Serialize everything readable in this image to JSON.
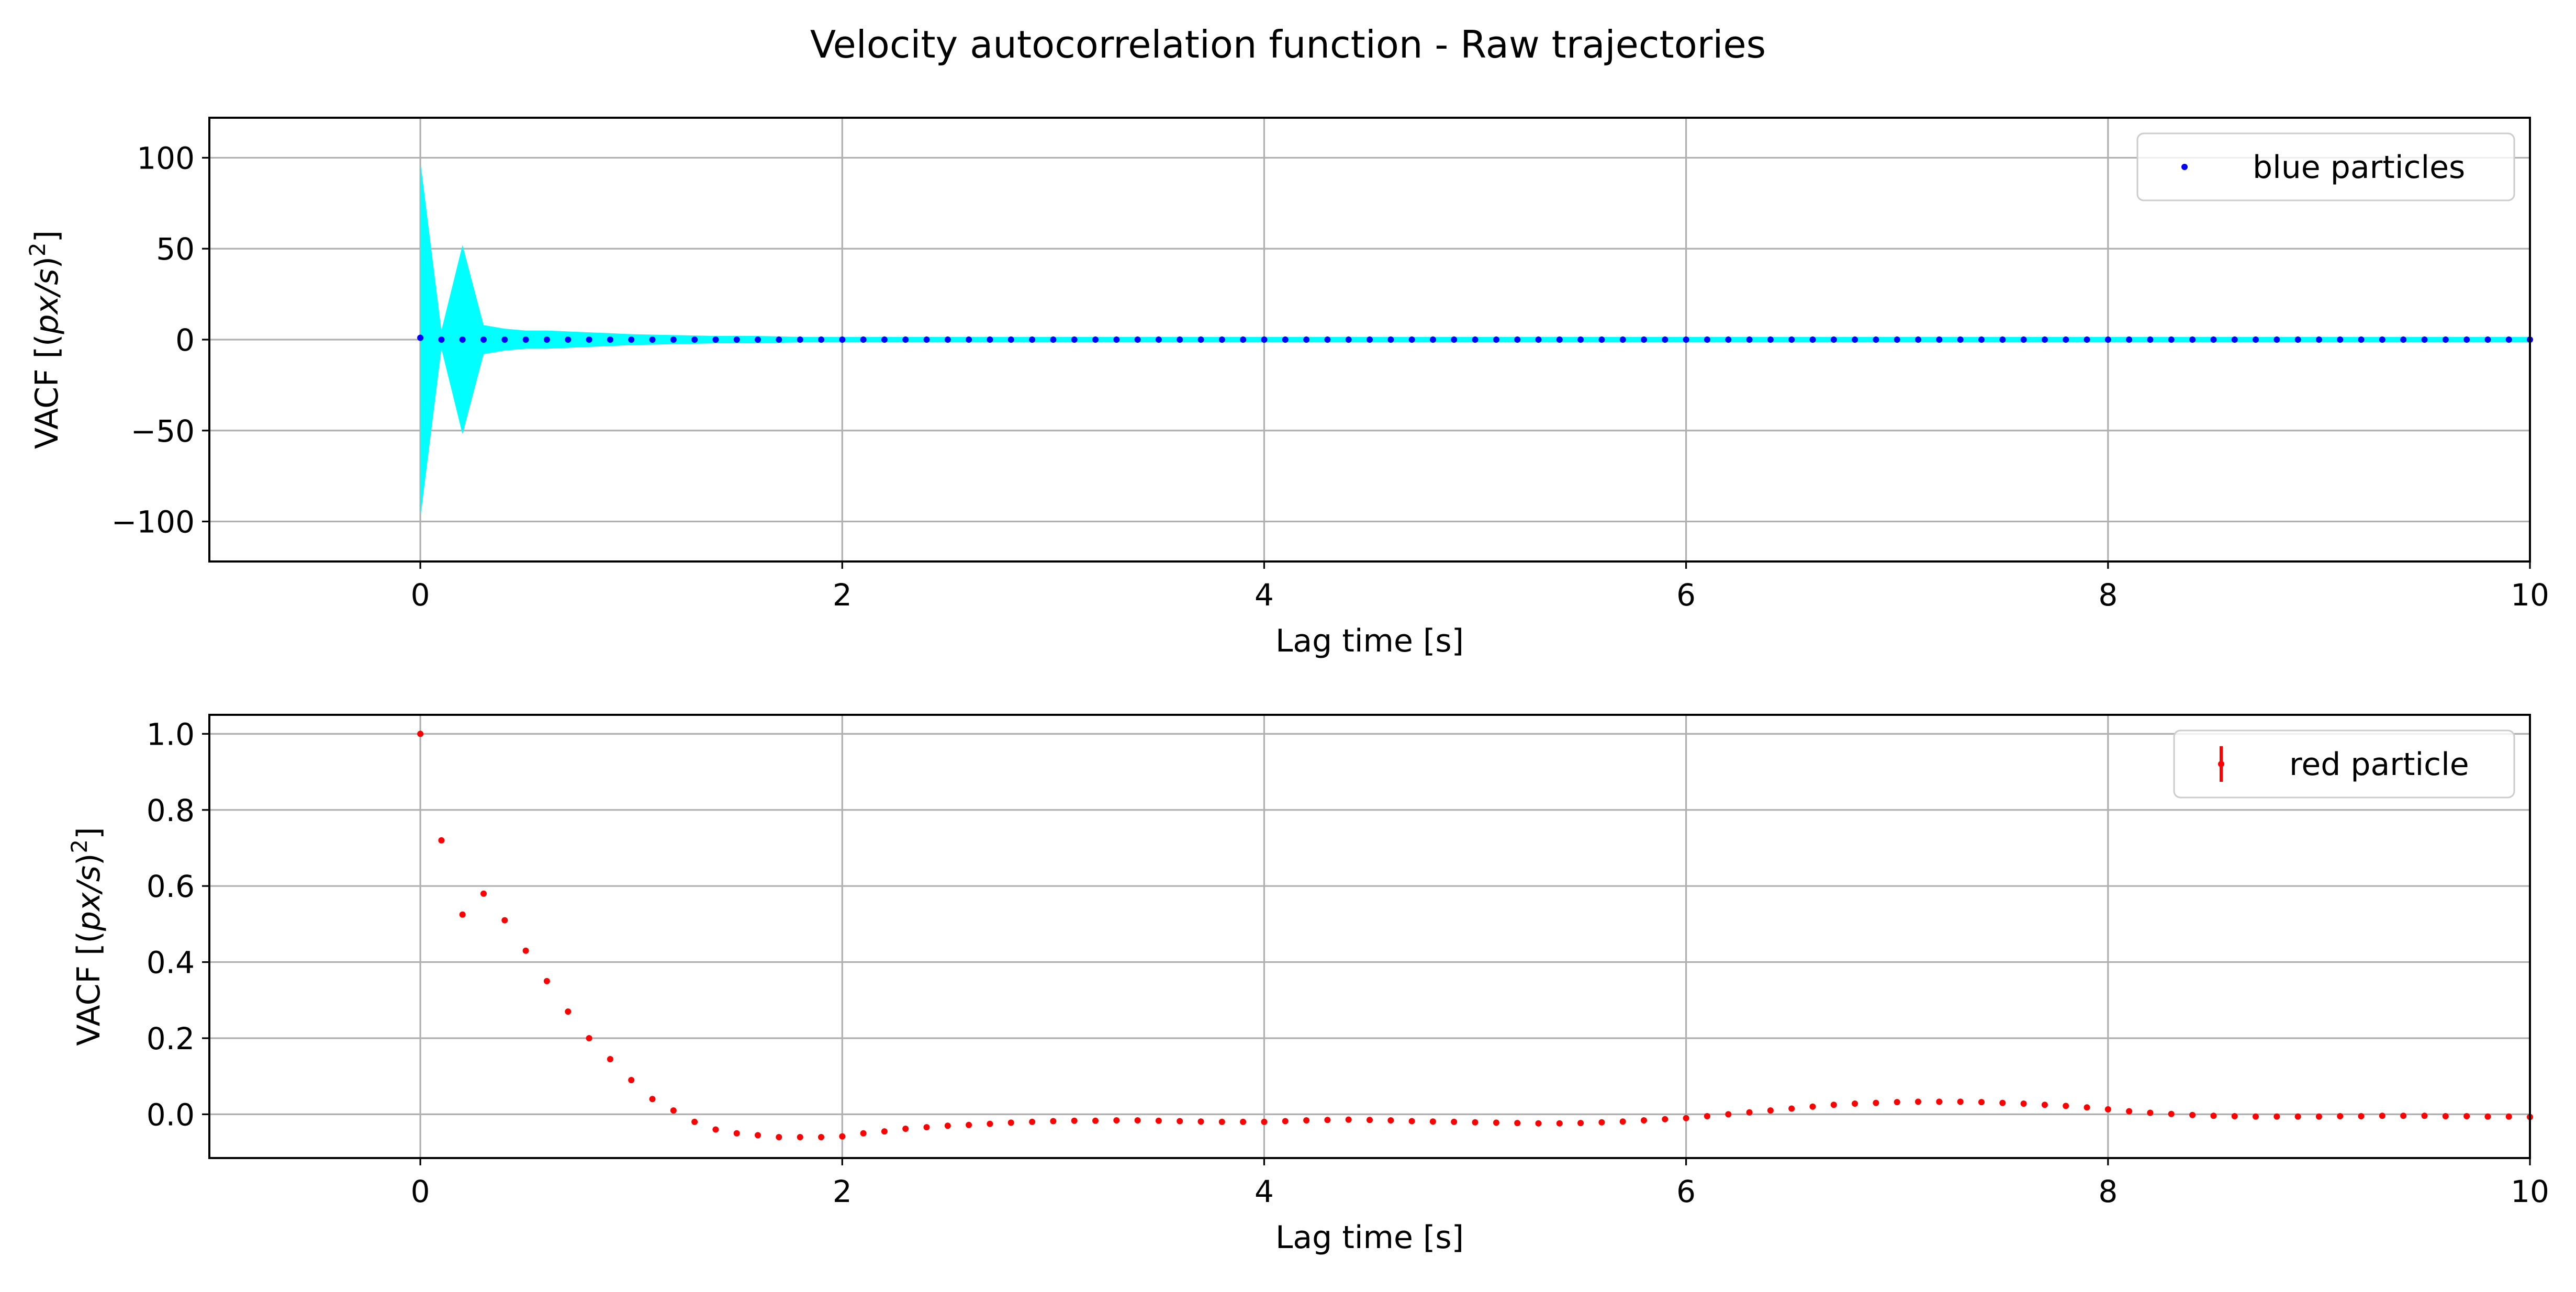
{
  "chart_data": {
    "title": "Velocity autocorrelation function - Raw trajectories",
    "subplots": [
      {
        "type": "scatter",
        "xlabel": "Lag time [s]",
        "ylabel": "VACF [(px/s)²]",
        "ylabel_main": "VACF [(",
        "ylabel_italic": "px/s",
        "ylabel_close": ")",
        "ylabel_sup": "2",
        "ylabel_end": "]",
        "xlim": [
          -1,
          10
        ],
        "ylim": [
          -122,
          122
        ],
        "xticks": [
          0,
          2,
          4,
          6,
          8,
          10
        ],
        "yticks": [
          -100,
          -50,
          0,
          50,
          100
        ],
        "ytick_labels": [
          "−100",
          "−50",
          "0",
          "50",
          "100"
        ],
        "grid": true,
        "legend_placement": "upper right",
        "series": [
          {
            "name": "blue particles",
            "color": "#0000ff",
            "marker": "point",
            "x": [
              0,
              0.1,
              0.2,
              0.3,
              0.4,
              0.5,
              0.6,
              0.7,
              0.8,
              0.9,
              1.0,
              1.1,
              1.2,
              1.3,
              1.4,
              1.5,
              1.6,
              1.7,
              1.8,
              1.9,
              2.0,
              2.1,
              2.2,
              2.3,
              2.4,
              2.5,
              2.6,
              2.7,
              2.8,
              2.9,
              3.0,
              3.1,
              3.2,
              3.3,
              3.4,
              3.5,
              3.6,
              3.7,
              3.8,
              3.9,
              4.0,
              4.1,
              4.2,
              4.3,
              4.4,
              4.5,
              4.6,
              4.7,
              4.8,
              4.9,
              5.0,
              5.1,
              5.2,
              5.3,
              5.4,
              5.5,
              5.6,
              5.7,
              5.8,
              5.9,
              6.0,
              6.1,
              6.2,
              6.3,
              6.4,
              6.5,
              6.6,
              6.7,
              6.8,
              6.9,
              7.0,
              7.1,
              7.2,
              7.3,
              7.4,
              7.5,
              7.6,
              7.7,
              7.8,
              7.9,
              8.0,
              8.1,
              8.2,
              8.3,
              8.4,
              8.5,
              8.6,
              8.7,
              8.8,
              8.9,
              9.0,
              9.1,
              9.2,
              9.3,
              9.4,
              9.5,
              9.6,
              9.7,
              9.8,
              9.9,
              10.0
            ],
            "y": [
              1,
              0,
              0,
              0,
              0,
              0,
              0,
              0,
              0,
              0,
              0,
              0,
              0,
              0,
              0,
              0,
              0,
              0,
              0,
              0,
              0,
              0,
              0,
              0,
              0,
              0,
              0,
              0,
              0,
              0,
              0,
              0,
              0,
              0,
              0,
              0,
              0,
              0,
              0,
              0,
              0,
              0,
              0,
              0,
              0,
              0,
              0,
              0,
              0,
              0,
              0,
              0,
              0,
              0,
              0,
              0,
              0,
              0,
              0,
              0,
              0,
              0,
              0,
              0,
              0,
              0,
              0,
              0,
              0,
              0,
              0,
              0,
              0,
              0,
              0,
              0,
              0,
              0,
              0,
              0,
              0,
              0,
              0,
              0,
              0,
              0,
              0,
              0,
              0,
              0,
              0,
              0,
              0,
              0,
              0,
              0,
              0,
              0,
              0,
              0,
              0
            ]
          }
        ],
        "band": {
          "color": "#00ffff",
          "x": [
            0,
            0.1,
            0.2,
            0.3,
            0.4,
            0.5,
            0.6,
            0.7,
            0.8,
            0.9,
            1.0,
            1.2,
            1.4,
            1.6,
            1.8,
            2.0,
            10.0
          ],
          "upper": [
            98,
            5,
            52,
            8,
            6,
            5,
            5,
            4.5,
            4,
            3.5,
            3,
            2.5,
            2,
            2,
            1.5,
            1.5,
            1.5
          ],
          "lower": [
            -98,
            -5,
            -52,
            -8,
            -6,
            -5,
            -5,
            -4.5,
            -4,
            -3.5,
            -3,
            -2.5,
            -2,
            -2,
            -1.5,
            -1.5,
            -1.5
          ]
        }
      },
      {
        "type": "scatter",
        "xlabel": "Lag time [s]",
        "ylabel": "VACF [(px/s)²]",
        "ylabel_main": "VACF [(",
        "ylabel_italic": "px/s",
        "ylabel_close": ")",
        "ylabel_sup": "2",
        "ylabel_end": "]",
        "xlim": [
          -1,
          10
        ],
        "ylim": [
          -0.115,
          1.05
        ],
        "xticks": [
          0,
          2,
          4,
          6,
          8,
          10
        ],
        "yticks": [
          0.0,
          0.2,
          0.4,
          0.6,
          0.8,
          1.0
        ],
        "ytick_labels": [
          "0.0",
          "0.2",
          "0.4",
          "0.6",
          "0.8",
          "1.0"
        ],
        "grid": true,
        "legend_placement": "upper right",
        "series": [
          {
            "name": "red particle",
            "color": "#ff0000",
            "marker": "errorbar-point",
            "x": [
              0,
              0.1,
              0.2,
              0.3,
              0.4,
              0.5,
              0.6,
              0.7,
              0.8,
              0.9,
              1.0,
              1.1,
              1.2,
              1.3,
              1.4,
              1.5,
              1.6,
              1.7,
              1.8,
              1.9,
              2.0,
              2.1,
              2.2,
              2.3,
              2.4,
              2.5,
              2.6,
              2.7,
              2.8,
              2.9,
              3.0,
              3.1,
              3.2,
              3.3,
              3.4,
              3.5,
              3.6,
              3.7,
              3.8,
              3.9,
              4.0,
              4.1,
              4.2,
              4.3,
              4.4,
              4.5,
              4.6,
              4.7,
              4.8,
              4.9,
              5.0,
              5.1,
              5.2,
              5.3,
              5.4,
              5.5,
              5.6,
              5.7,
              5.8,
              5.9,
              6.0,
              6.1,
              6.2,
              6.3,
              6.4,
              6.5,
              6.6,
              6.7,
              6.8,
              6.9,
              7.0,
              7.1,
              7.2,
              7.3,
              7.4,
              7.5,
              7.6,
              7.7,
              7.8,
              7.9,
              8.0,
              8.1,
              8.2,
              8.3,
              8.4,
              8.5,
              8.6,
              8.7,
              8.8,
              8.9,
              9.0,
              9.1,
              9.2,
              9.3,
              9.4,
              9.5,
              9.6,
              9.7,
              9.8,
              9.9,
              10.0
            ],
            "y": [
              1.0,
              0.72,
              0.525,
              0.58,
              0.51,
              0.43,
              0.35,
              0.27,
              0.2,
              0.145,
              0.09,
              0.04,
              0.01,
              -0.02,
              -0.04,
              -0.05,
              -0.055,
              -0.06,
              -0.06,
              -0.06,
              -0.058,
              -0.05,
              -0.045,
              -0.038,
              -0.034,
              -0.03,
              -0.028,
              -0.025,
              -0.022,
              -0.02,
              -0.018,
              -0.017,
              -0.017,
              -0.016,
              -0.016,
              -0.017,
              -0.018,
              -0.019,
              -0.02,
              -0.02,
              -0.02,
              -0.018,
              -0.016,
              -0.015,
              -0.014,
              -0.015,
              -0.016,
              -0.018,
              -0.019,
              -0.02,
              -0.021,
              -0.022,
              -0.023,
              -0.024,
              -0.024,
              -0.023,
              -0.021,
              -0.019,
              -0.016,
              -0.013,
              -0.01,
              -0.005,
              0.0,
              0.005,
              0.01,
              0.015,
              0.02,
              0.025,
              0.028,
              0.03,
              0.032,
              0.033,
              0.033,
              0.033,
              0.032,
              0.03,
              0.028,
              0.025,
              0.022,
              0.018,
              0.013,
              0.008,
              0.004,
              0.001,
              -0.002,
              -0.004,
              -0.005,
              -0.006,
              -0.006,
              -0.006,
              -0.006,
              -0.005,
              -0.005,
              -0.004,
              -0.004,
              -0.004,
              -0.005,
              -0.005,
              -0.006,
              -0.006,
              -0.007
            ]
          }
        ]
      }
    ]
  }
}
